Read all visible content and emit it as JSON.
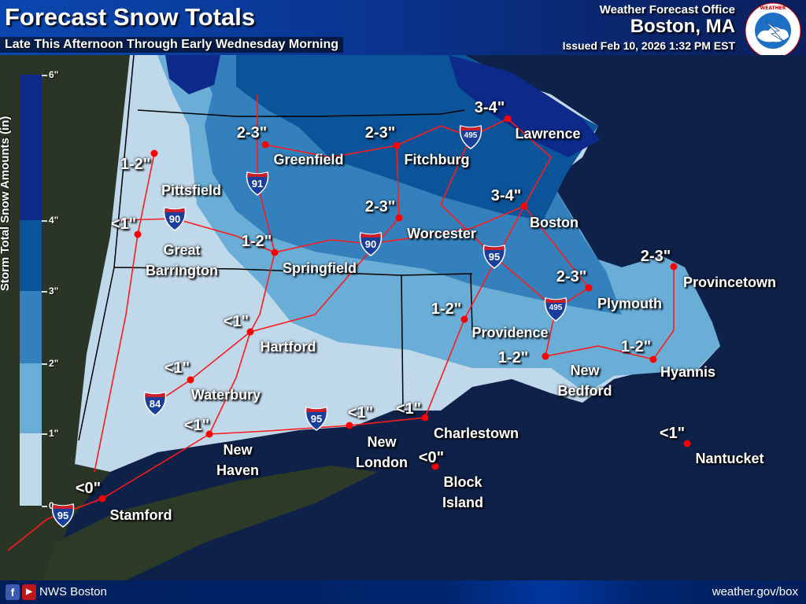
{
  "header": {
    "title": "Forecast Snow Totals",
    "subtitle": "Late This Afternoon Through Early Wednesday Morning",
    "office": "Weather Forecast Office",
    "city": "Boston, MA",
    "issued": "Issued Feb 10, 2026 1:32 PM EST",
    "logo_text": "NATIONAL WEATHER SERVICE"
  },
  "legend": {
    "title": "Storm Total Snow Amounts (in)",
    "ticks": [
      "6\"",
      "4\"",
      "3\"",
      "2\"",
      "1\"",
      "0"
    ],
    "bins": [
      {
        "range": "4-6",
        "color": "#0d2a8a"
      },
      {
        "range": "3-4",
        "color": "#0b5499"
      },
      {
        "range": "2-3",
        "color": "#3380bd"
      },
      {
        "range": "1-2",
        "color": "#6aaed8"
      },
      {
        "range": "0-1",
        "color": "#bfd8ea"
      }
    ]
  },
  "cities": [
    {
      "name": "Pittsfield",
      "amount": "1-2\""
    },
    {
      "name": "Great\nBarrington",
      "amount": "<1\""
    },
    {
      "name": "Greenfield",
      "amount": "2-3\""
    },
    {
      "name": "Springfield",
      "amount": "1-2\""
    },
    {
      "name": "Fitchburg",
      "amount": "2-3\""
    },
    {
      "name": "Worcester",
      "amount": "2-3\""
    },
    {
      "name": "Lawrence",
      "amount": "3-4\""
    },
    {
      "name": "Boston",
      "amount": "3-4\""
    },
    {
      "name": "Provincetown",
      "amount": "2-3\""
    },
    {
      "name": "Plymouth",
      "amount": "2-3\""
    },
    {
      "name": "Providence",
      "amount": "1-2\""
    },
    {
      "name": "New\nBedford",
      "amount": "1-2\""
    },
    {
      "name": "Hyannis",
      "amount": "1-2\""
    },
    {
      "name": "Hartford",
      "amount": "<1\""
    },
    {
      "name": "Waterbury",
      "amount": "<1\""
    },
    {
      "name": "New\nHaven",
      "amount": "<1\""
    },
    {
      "name": "New\nLondon",
      "amount": "<1\""
    },
    {
      "name": "Charlestown",
      "amount": "<1\""
    },
    {
      "name": "Block\nIsland",
      "amount": "<0\""
    },
    {
      "name": "Nantucket",
      "amount": "<1\""
    },
    {
      "name": "Stamford",
      "amount": "<0\""
    }
  ],
  "interstates": [
    "90",
    "91",
    "90",
    "495",
    "95",
    "495",
    "84",
    "95",
    "95"
  ],
  "colors": {
    "ocean": "#0e2148",
    "land": "#2b3526",
    "roads": "#ff1a1a",
    "borders": "#000000"
  },
  "footer": {
    "social": "NWS Boston",
    "facebook_icon": "f",
    "youtube_icon": "▶",
    "url": "weather.gov/box"
  }
}
